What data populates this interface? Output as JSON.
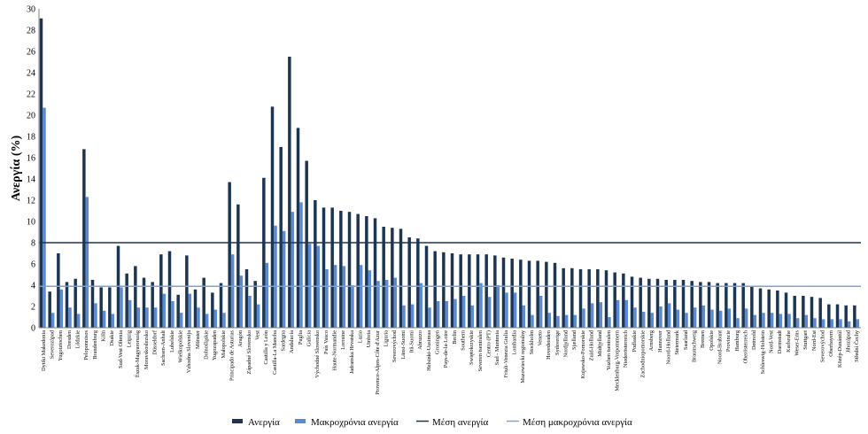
{
  "chart_data": {
    "type": "bar",
    "ylabel": "Ανεργία (%)",
    "ylim": [
      0,
      30
    ],
    "yticks": [
      0,
      2,
      4,
      6,
      8,
      10,
      12,
      14,
      16,
      18,
      20,
      22,
      24,
      26,
      28,
      30
    ],
    "grid": false,
    "legend_position": "bottom",
    "colors": {
      "unemployment": "#1c3553",
      "long_term": "#5b8ad2",
      "mean_line": "#1c3553",
      "mean_long_line": "#7ba3d6",
      "axis": "#7f7f7f"
    },
    "categories": [
      "Dytiki Makedonia",
      "Severozápad",
      "Yugoiztochen",
      "Dresden",
      "Lódzkie",
      "Peloponnisos",
      "Brandenburg",
      "Köln",
      "Dsakie",
      "Sud-Vest Oltenia",
      "Leipzig",
      "Észak-Magyarország",
      "Moravskoslezsko",
      "Düsseldorf",
      "Sachsen-Anhalt",
      "Lubelskie",
      "Wielkopolskie",
      "Vzhodna Slovenija",
      "Münster",
      "Dolnośląskie",
      "Yugozapaden",
      "Małopolskie",
      "Principado de Asturias",
      "Aragón",
      "Západné Slovensko",
      "Vest",
      "Castilla y León",
      "Castilla-La Mancha",
      "Sardegna",
      "Andalucía",
      "Puglia",
      "Galicia",
      "Východné Slovensko",
      "País Vasco",
      "Haute-Normandie",
      "Lorraine",
      "Jadranska Hrvatska",
      "Lazio",
      "Umbria",
      "Provence-Alpes-Côte d'Azur",
      "Liguria",
      "Severovýchod",
      "Länsi-Suomi",
      "Itä-Suomi",
      "Abruzzo",
      "Helsinki-Uusimaa",
      "Groningen",
      "Pays-de-la-Loire",
      "Berlin",
      "Southern",
      "Swiętokrzyskie",
      "Severen tsentralen",
      "Centro (PT)",
      "Sud - Muntenia",
      "Friuli-Venezia Giulia",
      "Lombardia",
      "Mazowiecki regionalny",
      "Stockholm",
      "Veneto",
      "Hovedstaden",
      "Sydsverige",
      "Nordjylland",
      "Sjælland",
      "Kujawsko-Pomorskie",
      "Zuid-Holland",
      "Midtjylland",
      "Yuzhen tsentralen",
      "Mecklenburg-Vorpommern",
      "Niederösterreich",
      "Podlaskie",
      "Zachodniopomorskie",
      "Arnsberg",
      "Hannover",
      "Noord-Holland",
      "Steiermark",
      "Saarland",
      "Braunschweig",
      "Bremen",
      "Opolskie",
      "Noord-Brabant",
      "Provincie",
      "Hamburg",
      "Oberösterreich",
      "Detmold",
      "Schleswig-Holstein",
      "Nord-Vest",
      "Darmstadt",
      "Karlsruhe",
      "Weser-Ems",
      "Stuttgart",
      "Nord-Est",
      "Severovýchod",
      "Oberbayern",
      "Közép-Dunántúl",
      "Jihozápad",
      "Střední Čechy"
    ],
    "series": [
      {
        "name": "Ανεργία",
        "values": [
          29.1,
          3.4,
          7.0,
          4.3,
          4.6,
          16.8,
          4.5,
          3.8,
          3.8,
          7.7,
          5.1,
          5.8,
          4.7,
          4.3,
          6.9,
          7.2,
          3.1,
          6.8,
          3.6,
          4.7,
          3.3,
          4.2,
          13.7,
          11.6,
          5.5,
          4.4,
          14.1,
          20.8,
          17.0,
          25.5,
          18.8,
          15.7,
          12.0,
          11.3,
          11.3,
          11.0,
          10.9,
          10.7,
          10.5,
          10.3,
          9.5,
          9.4,
          9.3,
          8.5,
          8.4,
          7.7,
          7.2,
          7.1,
          7.0,
          6.9,
          6.9,
          6.9,
          6.9,
          6.8,
          6.6,
          6.5,
          6.4,
          6.3,
          6.3,
          6.2,
          6.1,
          5.6,
          5.6,
          5.5,
          5.5,
          5.5,
          5.4,
          5.2,
          5.1,
          4.8,
          4.7,
          4.6,
          4.6,
          4.5,
          4.5,
          4.5,
          4.4,
          4.3,
          4.3,
          4.2,
          4.2,
          4.2,
          4.2,
          3.9,
          3.7,
          3.6,
          3.5,
          3.3,
          3.0,
          3.0,
          2.9,
          2.8,
          2.2,
          2.2,
          2.1,
          2.1
        ]
      },
      {
        "name": "Μακροχρόνια ανεργία",
        "values": [
          20.7,
          1.4,
          3.6,
          1.9,
          1.3,
          12.3,
          2.3,
          1.6,
          1.3,
          3.8,
          2.6,
          1.9,
          1.9,
          1.9,
          3.2,
          2.5,
          1.4,
          3.2,
          1.9,
          1.3,
          1.7,
          1.4,
          6.9,
          4.9,
          3.0,
          2.2,
          6.1,
          9.6,
          9.1,
          10.9,
          11.8,
          7.9,
          7.7,
          5.5,
          5.9,
          5.8,
          4.0,
          5.9,
          5.4,
          4.4,
          4.5,
          4.7,
          2.1,
          2.2,
          4.2,
          1.9,
          2.5,
          2.5,
          2.7,
          3.0,
          2.1,
          4.2,
          2.9,
          4.0,
          3.3,
          3.3,
          2.1,
          1.2,
          3.0,
          1.4,
          1.1,
          1.2,
          1.2,
          1.8,
          2.3,
          2.4,
          1.0,
          2.6,
          2.6,
          1.9,
          1.5,
          1.4,
          2.0,
          2.3,
          1.7,
          1.4,
          1.9,
          2.1,
          1.7,
          1.6,
          1.8,
          0.9,
          1.8,
          1.2,
          1.4,
          1.4,
          1.3,
          1.3,
          0.9,
          1.2,
          0.9,
          0.8,
          0.8,
          0.8,
          0.6,
          0.8
        ]
      }
    ],
    "reference_lines": [
      {
        "name": "Μέση ανεργία",
        "value": 8.0
      },
      {
        "name": "Μέση μακροχρόνια ανεργία",
        "value": 3.9
      }
    ]
  }
}
